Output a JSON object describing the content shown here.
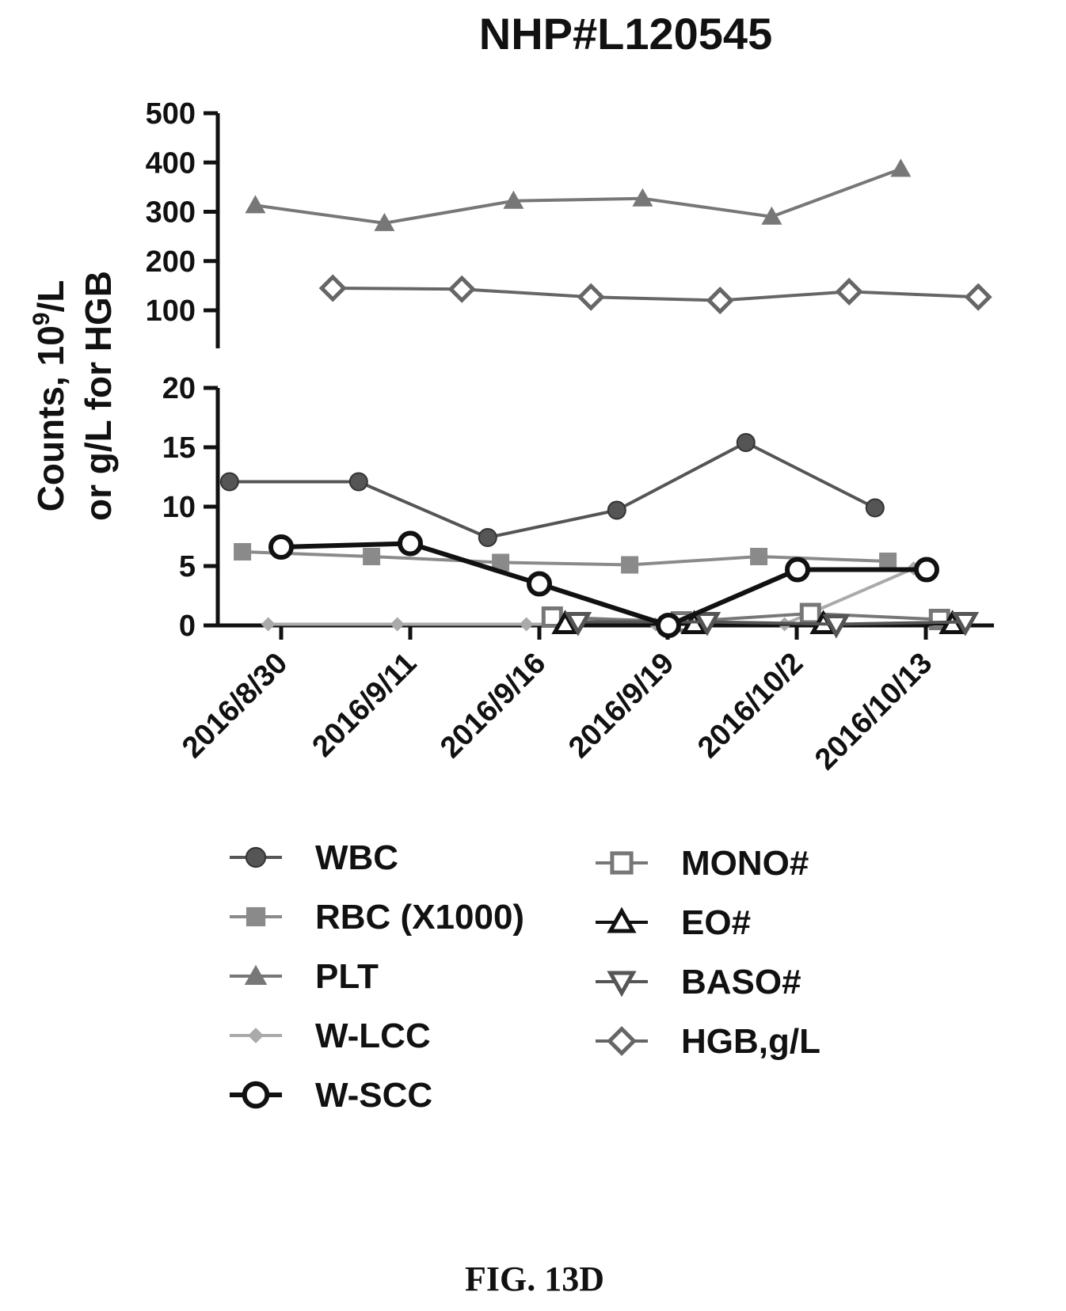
{
  "chart_data": {
    "type": "line",
    "title": "NHP#L120545",
    "ylabel_lines": [
      "Counts, 10",
      "9",
      "/L",
      "or g/L for HGB"
    ],
    "y_axis_broken": true,
    "upper_segment": {
      "ylim": [
        0,
        500
      ],
      "ticks": [
        500,
        400,
        300,
        200,
        100
      ]
    },
    "lower_segment": {
      "ylim": [
        0,
        20
      ],
      "ticks": [
        20,
        15,
        10,
        5,
        0
      ]
    },
    "x_tick_labels": [
      "2016/8/30",
      "2016/9/11",
      "2016/9/16",
      "2016/9/19",
      "2016/10/2",
      "2016/10/13"
    ],
    "series": [
      {
        "name": "WBC",
        "color": "#555555",
        "marker": "circle-filled",
        "segment": "lower",
        "points": [
          [
            -0.4,
            12.1
          ],
          [
            0.6,
            12.1
          ],
          [
            1.6,
            7.4
          ],
          [
            2.6,
            9.7
          ],
          [
            3.6,
            15.4
          ],
          [
            4.6,
            9.9
          ]
        ]
      },
      {
        "name": "RBC (X1000)",
        "color": "#8a8a8a",
        "marker": "square-filled",
        "segment": "lower",
        "points": [
          [
            -0.3,
            6.2
          ],
          [
            0.7,
            5.8
          ],
          [
            1.7,
            5.3
          ],
          [
            2.7,
            5.1
          ],
          [
            3.7,
            5.8
          ],
          [
            4.7,
            5.4
          ]
        ]
      },
      {
        "name": "PLT",
        "color": "#777777",
        "marker": "triangle-filled",
        "segment": "upper",
        "points": [
          [
            -0.2,
            313
          ],
          [
            0.8,
            277
          ],
          [
            1.8,
            322
          ],
          [
            2.8,
            327
          ],
          [
            3.8,
            290
          ],
          [
            4.8,
            387
          ]
        ]
      },
      {
        "name": "W-LCC",
        "color": "#aaaaaa",
        "marker": "diamond-small",
        "segment": "lower",
        "points": [
          [
            -0.1,
            0.1
          ],
          [
            0.9,
            0.1
          ],
          [
            1.9,
            0.1
          ],
          [
            2.9,
            0.1
          ],
          [
            3.9,
            0.1
          ],
          [
            4.9,
            4.8
          ]
        ]
      },
      {
        "name": "W-SCC",
        "color": "#111111",
        "marker": "circle-open",
        "segment": "lower",
        "points": [
          [
            0.0,
            6.6
          ],
          [
            1.0,
            6.9
          ],
          [
            2.0,
            3.5
          ],
          [
            3.0,
            0.0
          ],
          [
            4.0,
            4.7
          ],
          [
            5.0,
            4.7
          ]
        ]
      },
      {
        "name": "MONO#",
        "color": "#777777",
        "marker": "square-open",
        "segment": "lower",
        "points": [
          [
            2.1,
            0.7
          ],
          [
            3.1,
            0.3
          ],
          [
            4.1,
            1.0
          ],
          [
            5.1,
            0.5
          ]
        ]
      },
      {
        "name": "EO#",
        "color": "#111111",
        "marker": "triangle-open",
        "segment": "lower",
        "points": [
          [
            2.2,
            0.1
          ],
          [
            3.2,
            0.1
          ],
          [
            4.2,
            0.1
          ],
          [
            5.2,
            0.1
          ]
        ]
      },
      {
        "name": "BASO#",
        "color": "#555555",
        "marker": "triangle-down-open",
        "segment": "lower",
        "points": [
          [
            2.3,
            0.3
          ],
          [
            3.3,
            0.3
          ],
          [
            4.3,
            0.1
          ],
          [
            5.3,
            0.3
          ]
        ]
      },
      {
        "name": "HGB,g/L",
        "color": "#666666",
        "marker": "diamond-open",
        "segment": "upper",
        "points": [
          [
            0.4,
            145
          ],
          [
            1.4,
            143
          ],
          [
            2.4,
            127
          ],
          [
            3.4,
            120
          ],
          [
            4.4,
            138
          ],
          [
            5.4,
            127
          ]
        ]
      }
    ],
    "legend_placement": "bottom",
    "caption": "FIG. 13D"
  }
}
